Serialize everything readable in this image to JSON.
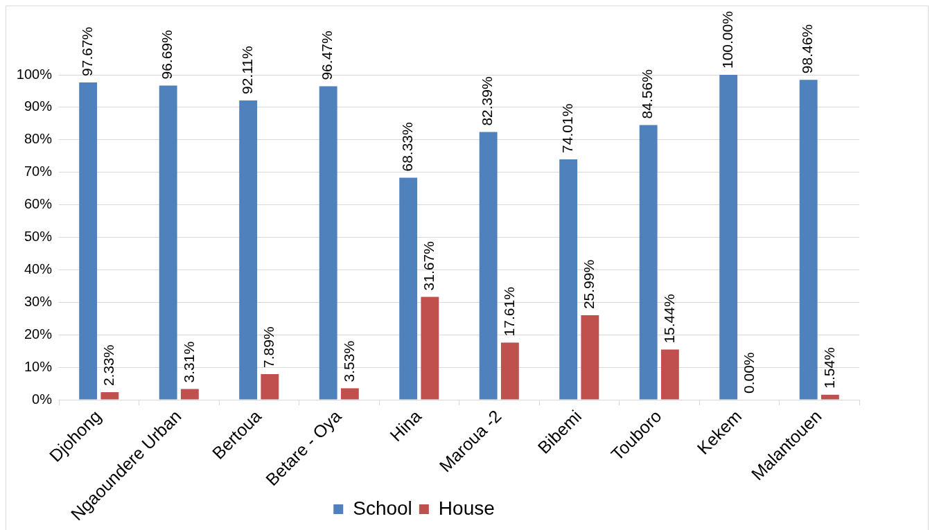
{
  "chart_data": {
    "type": "bar",
    "categories": [
      "Djohong",
      "Ngaoundere Urban",
      "Bertoua",
      "Betare - Oya",
      "Hina",
      "Maroua -2",
      "Bibemi",
      "Touboro",
      "Kekem",
      "Malantouen"
    ],
    "series": [
      {
        "name": "School",
        "color": "#4f81bd",
        "values": [
          97.67,
          96.69,
          92.11,
          96.47,
          68.33,
          82.39,
          74.01,
          84.56,
          100,
          98.46
        ],
        "value_labels": [
          "97.67%",
          "96.69%",
          "92.11%",
          "96.47%",
          "68.33%",
          "82.39%",
          "74.01%",
          "84.56%",
          "100.00%",
          "98.46%"
        ]
      },
      {
        "name": "House",
        "color": "#c0504d",
        "values": [
          2.33,
          3.31,
          7.89,
          3.53,
          31.67,
          17.61,
          25.99,
          15.44,
          0,
          1.54
        ],
        "value_labels": [
          "2.33%",
          "3.31%",
          "7.89%",
          "3.53%",
          "31.67%",
          "17.61%",
          "25.99%",
          "15.44%",
          "0.00%",
          "1.54%"
        ]
      }
    ],
    "ylim": [
      0,
      100
    ],
    "yticks": [
      {
        "value": 0,
        "label": "0%"
      },
      {
        "value": 10,
        "label": "10%"
      },
      {
        "value": 20,
        "label": "20%"
      },
      {
        "value": 30,
        "label": "30%"
      },
      {
        "value": 40,
        "label": "40%"
      },
      {
        "value": 50,
        "label": "50%"
      },
      {
        "value": 60,
        "label": "60%"
      },
      {
        "value": 70,
        "label": "70%"
      },
      {
        "value": 80,
        "label": "80%"
      },
      {
        "value": 90,
        "label": "90%"
      },
      {
        "value": 100,
        "label": "100%"
      }
    ],
    "grid": "y",
    "legend": "bottom"
  }
}
